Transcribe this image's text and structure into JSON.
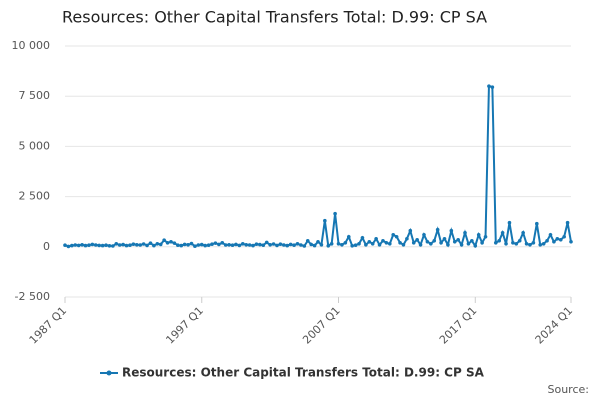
{
  "chart_data": {
    "type": "line",
    "title": "Resources: Other Capital Transfers Total: D.99: CP SA",
    "source": "Source:",
    "categories": [
      "1987 Q1",
      null,
      null,
      null,
      null,
      null,
      null,
      null,
      null,
      null,
      null,
      null,
      null,
      null,
      null,
      null,
      null,
      null,
      null,
      null,
      null,
      null,
      null,
      null,
      null,
      null,
      null,
      null,
      null,
      null,
      null,
      null,
      null,
      null,
      null,
      null,
      null,
      null,
      null,
      null,
      "1997 Q1",
      null,
      null,
      null,
      null,
      null,
      null,
      null,
      null,
      null,
      null,
      null,
      null,
      null,
      null,
      null,
      null,
      null,
      null,
      null,
      null,
      null,
      null,
      null,
      null,
      null,
      null,
      null,
      null,
      null,
      null,
      null,
      null,
      null,
      null,
      null,
      null,
      null,
      null,
      null,
      "2007 Q1",
      null,
      null,
      null,
      null,
      null,
      null,
      null,
      null,
      null,
      null,
      null,
      null,
      null,
      null,
      null,
      null,
      null,
      null,
      null,
      null,
      null,
      null,
      null,
      null,
      null,
      null,
      null,
      null,
      null,
      null,
      null,
      null,
      null,
      null,
      null,
      null,
      null,
      null,
      null,
      "2017 Q1",
      null,
      null,
      null,
      null,
      null,
      null,
      null,
      null,
      null,
      null,
      null,
      null,
      null,
      null,
      null,
      null,
      null,
      null,
      null,
      null,
      null,
      null,
      null,
      null,
      null,
      null,
      null,
      "2024 Q1"
    ],
    "series": [
      {
        "name": "Resources: Other Capital Transfers Total: D.99: CP SA",
        "color": "#1677b3",
        "values": [
          80,
          20,
          60,
          90,
          70,
          100,
          60,
          80,
          120,
          90,
          70,
          60,
          80,
          50,
          40,
          150,
          90,
          110,
          60,
          80,
          130,
          100,
          90,
          140,
          70,
          180,
          60,
          150,
          120,
          330,
          200,
          250,
          180,
          80,
          60,
          120,
          100,
          160,
          30,
          90,
          110,
          60,
          80,
          130,
          180,
          120,
          200,
          90,
          100,
          80,
          120,
          70,
          150,
          100,
          90,
          60,
          130,
          110,
          80,
          220,
          100,
          140,
          70,
          130,
          90,
          60,
          120,
          80,
          150,
          90,
          40,
          300,
          120,
          60,
          250,
          100,
          1300,
          50,
          150,
          1650,
          150,
          100,
          200,
          500,
          50,
          80,
          150,
          450,
          100,
          250,
          150,
          400,
          100,
          300,
          200,
          150,
          600,
          500,
          200,
          100,
          400,
          800,
          200,
          350,
          100,
          600,
          250,
          150,
          300,
          850,
          200,
          400,
          100,
          800,
          250,
          350,
          100,
          700,
          150,
          300,
          50,
          600,
          200,
          500,
          8000,
          7950,
          200,
          300,
          700,
          150,
          1200,
          200,
          150,
          300,
          700,
          150,
          100,
          200,
          1150,
          100,
          150,
          300,
          600,
          250,
          400,
          350,
          500,
          1200,
          250
        ]
      }
    ],
    "ylim": [
      -2500,
      10000
    ],
    "yticks": [
      {
        "value": -2500,
        "label": "-2 500"
      },
      0,
      {
        "value": 2500,
        "label": "2 500"
      },
      {
        "value": 5000,
        "label": "5 000"
      },
      {
        "value": 7500,
        "label": "7 500"
      },
      {
        "value": 10000,
        "label": "10 000"
      }
    ],
    "grid": true,
    "legend": "bottom"
  }
}
